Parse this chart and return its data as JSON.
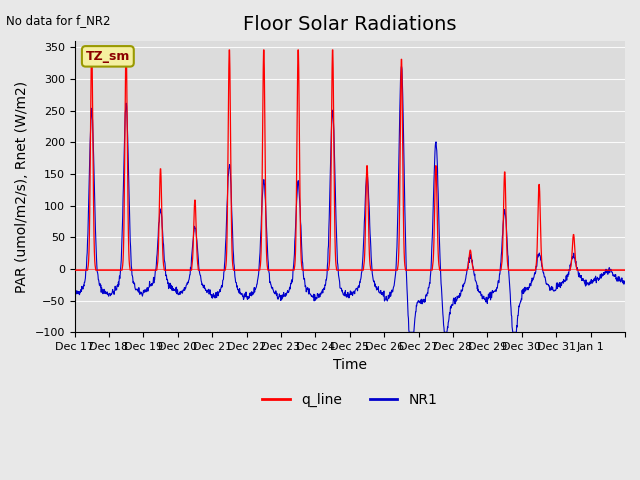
{
  "title": "Floor Solar Radiations",
  "xlabel": "Time",
  "ylabel": "PAR (umol/m2/s), Rnet (W/m2)",
  "top_left_text": "No data for f_NR2",
  "legend_label_red": "q_line",
  "legend_label_blue": "NR1",
  "box_label": "TZ_sm",
  "ylim": [
    -100,
    360
  ],
  "yticks": [
    -100,
    -50,
    0,
    50,
    100,
    150,
    200,
    250,
    300,
    350
  ],
  "background_color": "#e8e8e8",
  "plot_bg_color": "#dcdcdc",
  "red_color": "#ff0000",
  "blue_color": "#0000cc",
  "title_fontsize": 14,
  "label_fontsize": 10,
  "tick_fontsize": 8,
  "n_days": 16,
  "x_tick_positions": [
    0,
    1,
    2,
    3,
    4,
    5,
    6,
    7,
    8,
    9,
    10,
    11,
    12,
    13,
    14,
    15,
    16
  ],
  "x_tick_labels": [
    "Dec 17",
    "Dec 18",
    "Dec 19",
    "Dec 20",
    "Dec 21",
    "Dec 22",
    "Dec 23",
    "Dec 24",
    "Dec 25",
    "Dec 26",
    "Dec 27",
    "Dec 28",
    "Dec 29",
    "Dec 30",
    "Dec 31",
    "Jan 1",
    ""
  ],
  "red_peaks": [
    350,
    350,
    160,
    110,
    350,
    350,
    350,
    350,
    165,
    335,
    165,
    30,
    155,
    135,
    55,
    0
  ],
  "blue_peaks": [
    260,
    270,
    100,
    75,
    175,
    150,
    145,
    260,
    155,
    330,
    210,
    30,
    100,
    30,
    25,
    0
  ],
  "blue_night_base": [
    -40,
    -40,
    -35,
    -40,
    -45,
    -45,
    -45,
    -45,
    -40,
    -50,
    -55,
    -50,
    -45,
    -35,
    -25,
    -20
  ],
  "blue_deep_dip": [
    0,
    0,
    0,
    0,
    0,
    0,
    0,
    0,
    0,
    -90,
    -65,
    0,
    -85,
    0,
    0,
    0
  ]
}
